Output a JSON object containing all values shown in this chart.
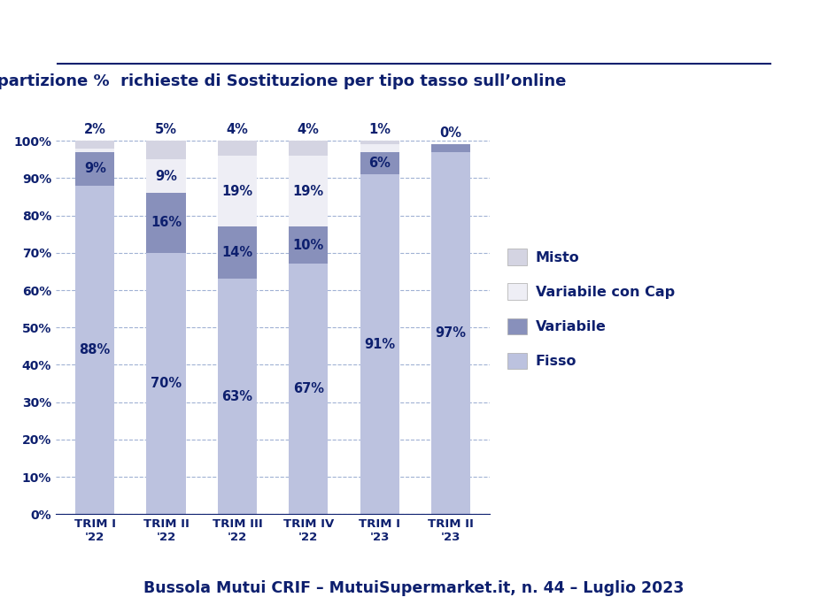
{
  "title": "Ripartizione %  richieste di Sostituzione per tipo tasso sull’online",
  "subtitle": "Bussola Mutui CRIF – MutuiSupermarket.it, n. 44 – Luglio 2023",
  "categories": [
    "TRIM I\n'22",
    "TRIM II\n'22",
    "TRIM III\n'22",
    "TRIM IV\n'22",
    "TRIM I\n'23",
    "TRIM II\n'23"
  ],
  "fisso": [
    88,
    70,
    63,
    67,
    91,
    97
  ],
  "variabile": [
    9,
    16,
    14,
    10,
    6,
    2
  ],
  "var_con_cap": [
    1,
    9,
    19,
    19,
    2,
    0
  ],
  "misto": [
    2,
    5,
    4,
    4,
    1,
    0
  ],
  "color_fisso": "#BCC2DF",
  "color_variabile": "#8890BB",
  "color_var_cap": "#EEEEF5",
  "color_misto": "#D4D4E2",
  "text_color": "#0D1F6E",
  "title_color": "#0D1F6E",
  "bg_color": "#FFFFFF",
  "bar_width": 0.55,
  "ylim": [
    0,
    110
  ],
  "yticks": [
    0,
    10,
    20,
    30,
    40,
    50,
    60,
    70,
    80,
    90,
    100
  ],
  "legend_labels": [
    "Misto",
    "Variabile con Cap",
    "Variabile",
    "Fisso"
  ],
  "legend_colors": [
    "#D4D4E2",
    "#EEEEF5",
    "#8890BB",
    "#BCC2DF"
  ]
}
